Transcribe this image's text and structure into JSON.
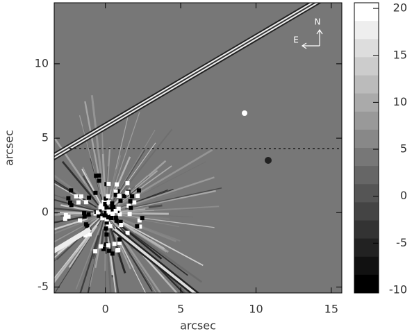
{
  "chart_data": {
    "type": "image",
    "xlabel": "arcsec",
    "ylabel": "arcsec",
    "xlim": [
      -3.4,
      15.7
    ],
    "ylim": [
      -5.4,
      14.1
    ],
    "xticks": [
      0,
      5,
      10,
      15
    ],
    "yticks": [
      -5,
      0,
      5,
      10
    ],
    "colorbar": {
      "lim": [
        -10.3,
        20.6
      ],
      "ticks": [
        -10,
        -5,
        0,
        5,
        10,
        15,
        20
      ]
    },
    "compass": {
      "north": "N",
      "east": "E"
    }
  }
}
